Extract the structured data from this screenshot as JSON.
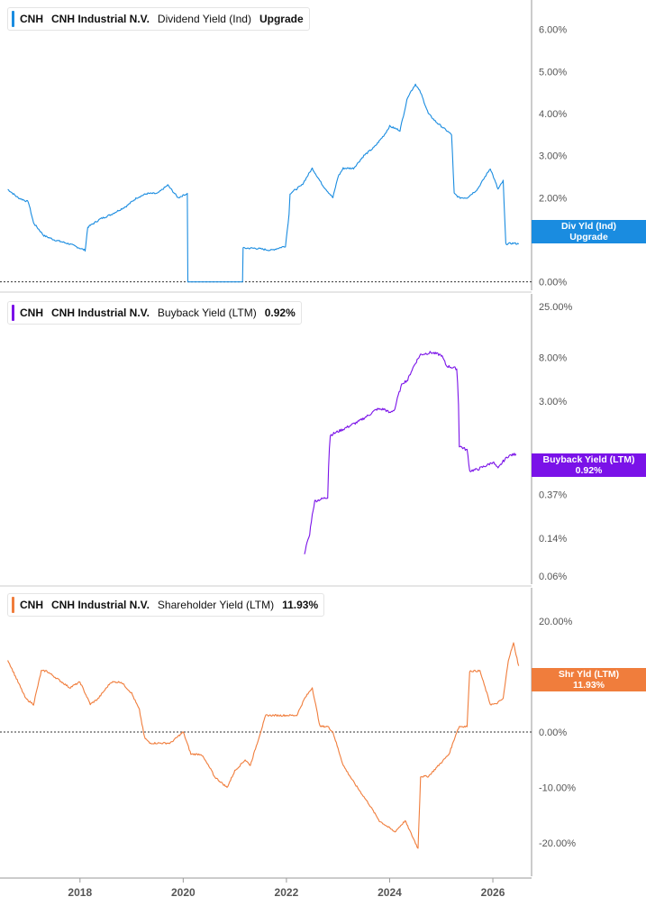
{
  "panels": [
    {
      "ticker": "CNH",
      "company": "CNH Industrial N.V.",
      "metric": "Dividend Yield (Ind)",
      "value": "Upgrade",
      "flag_line1": "Div Yld (Ind)",
      "flag_line2": "Upgrade",
      "color": "#1a8ce0"
    },
    {
      "ticker": "CNH",
      "company": "CNH Industrial N.V.",
      "metric": "Buyback Yield (LTM)",
      "value": "0.92%",
      "flag_line1": "Buyback Yield (LTM)",
      "flag_line2": "0.92%",
      "color": "#7a12e8"
    },
    {
      "ticker": "CNH",
      "company": "CNH Industrial N.V.",
      "metric": "Shareholder Yield (LTM)",
      "value": "11.93%",
      "flag_line1": "Shr Yld (LTM)",
      "flag_line2": "11.93%",
      "color": "#f07d3c"
    }
  ],
  "chart_data": [
    {
      "type": "line",
      "title": "CNH  CNH Industrial N.V.  Dividend Yield (Ind)",
      "y_ticks": [
        "6.00%",
        "5.00%",
        "4.00%",
        "3.00%",
        "2.00%",
        "1.00%",
        "0.00%"
      ],
      "y_tick_values": [
        6,
        5,
        4,
        3,
        2,
        1,
        0
      ],
      "ylim": [
        -0.2,
        6.7
      ],
      "zero_line": true,
      "x": [
        2016.6,
        2016.8,
        2017.0,
        2017.1,
        2017.3,
        2017.5,
        2017.8,
        2018.0,
        2018.1,
        2018.15,
        2018.4,
        2018.6,
        2018.9,
        2019.1,
        2019.3,
        2019.5,
        2019.7,
        2019.9,
        2020.08,
        2020.09,
        2020.6,
        2021.15,
        2021.16,
        2021.4,
        2021.7,
        2021.98,
        2022.05,
        2022.07,
        2022.3,
        2022.5,
        2022.7,
        2022.9,
        2023.0,
        2023.1,
        2023.3,
        2023.5,
        2023.7,
        2023.9,
        2024.0,
        2024.2,
        2024.35,
        2024.5,
        2024.6,
        2024.75,
        2024.9,
        2025.1,
        2025.2,
        2025.25,
        2025.35,
        2025.5,
        2025.7,
        2025.85,
        2025.95,
        2026.1,
        2026.2,
        2026.25,
        2026.4,
        2026.5
      ],
      "y": [
        2.2,
        2.0,
        1.9,
        1.4,
        1.1,
        1.0,
        0.9,
        0.8,
        0.75,
        1.3,
        1.5,
        1.6,
        1.8,
        2.0,
        2.1,
        2.1,
        2.3,
        2.0,
        2.1,
        0.0,
        0.0,
        0.0,
        0.8,
        0.8,
        0.75,
        0.85,
        1.6,
        2.1,
        2.3,
        2.7,
        2.3,
        2.0,
        2.5,
        2.7,
        2.7,
        3.0,
        3.2,
        3.5,
        3.7,
        3.6,
        4.4,
        4.7,
        4.5,
        4.0,
        3.8,
        3.6,
        3.5,
        2.1,
        2.0,
        2.0,
        2.2,
        2.5,
        2.7,
        2.2,
        2.4,
        0.9,
        0.92,
        0.9
      ],
      "series": [
        {
          "name": "Div Yld (Ind)"
        }
      ]
    },
    {
      "type": "line",
      "title": "CNH  CNH Industrial N.V.  Buyback Yield (LTM)",
      "y_scale": "log",
      "y_ticks": [
        "25.00%",
        "8.00%",
        "3.00%",
        "0.37%",
        "0.14%",
        "0.06%"
      ],
      "y_tick_values": [
        25,
        8,
        3,
        0.37,
        0.14,
        0.06
      ],
      "ylim": [
        0.05,
        33
      ],
      "x": [
        2022.35,
        2022.45,
        2022.55,
        2022.8,
        2022.85,
        2023.1,
        2023.2,
        2023.4,
        2023.6,
        2023.75,
        2023.9,
        2024.0,
        2024.1,
        2024.25,
        2024.35,
        2024.6,
        2024.8,
        2025.0,
        2025.1,
        2025.3,
        2025.35,
        2025.5,
        2025.55,
        2025.7,
        2025.9,
        2026.0,
        2026.1,
        2026.2,
        2026.3,
        2026.45
      ],
      "y": [
        0.1,
        0.15,
        0.32,
        0.35,
        1.4,
        1.6,
        1.7,
        1.9,
        2.2,
        2.5,
        2.5,
        2.3,
        2.5,
        4.5,
        4.8,
        8.5,
        8.9,
        8.4,
        6.6,
        6.2,
        1.1,
        1.0,
        0.63,
        0.65,
        0.72,
        0.77,
        0.66,
        0.78,
        0.88,
        0.92
      ],
      "series": [
        {
          "name": "Buyback Yield (LTM)"
        }
      ]
    },
    {
      "type": "line",
      "title": "CNH  CNH Industrial N.V.  Shareholder Yield (LTM)",
      "y_ticks": [
        "20.00%",
        "10.00%",
        "0.00%",
        "-10.00%",
        "-20.00%"
      ],
      "y_tick_values": [
        20,
        10,
        0,
        -10,
        -20
      ],
      "ylim": [
        -26,
        26
      ],
      "zero_line": true,
      "x": [
        2016.6,
        2016.75,
        2016.95,
        2017.1,
        2017.25,
        2017.35,
        2017.65,
        2017.8,
        2018.0,
        2018.2,
        2018.35,
        2018.6,
        2018.8,
        2019.0,
        2019.15,
        2019.25,
        2019.35,
        2019.55,
        2019.75,
        2020.0,
        2020.15,
        2020.35,
        2020.55,
        2020.6,
        2020.85,
        2021.0,
        2021.2,
        2021.3,
        2021.6,
        2021.85,
        2021.95,
        2022.2,
        2022.35,
        2022.5,
        2022.65,
        2022.8,
        2022.9,
        2023.1,
        2023.3,
        2023.45,
        2023.6,
        2023.8,
        2023.95,
        2024.1,
        2024.3,
        2024.45,
        2024.55,
        2024.6,
        2024.75,
        2024.95,
        2025.15,
        2025.3,
        2025.35,
        2025.5,
        2025.55,
        2025.75,
        2025.95,
        2026.05,
        2026.2,
        2026.3,
        2026.4,
        2026.5
      ],
      "y": [
        13,
        10,
        6,
        5,
        11,
        11,
        9,
        8,
        9,
        5,
        6,
        9,
        9,
        7,
        4,
        -1,
        -2,
        -2,
        -2,
        0,
        -4,
        -4,
        -7,
        -8,
        -10,
        -7,
        -5,
        -6,
        3,
        3,
        3,
        3,
        6,
        8,
        1,
        1,
        0,
        -6,
        -9,
        -11,
        -13,
        -16,
        -17,
        -18,
        -16,
        -19,
        -21,
        -8,
        -8,
        -6,
        -4,
        0,
        1,
        1,
        11,
        11,
        5,
        5,
        6,
        13,
        16,
        11.93
      ],
      "series": [
        {
          "name": "Shr Yld (LTM)"
        }
      ]
    }
  ],
  "x_axis": {
    "ticks": [
      "2018",
      "2020",
      "2022",
      "2024",
      "2026"
    ],
    "tick_values": [
      2018,
      2020,
      2022,
      2024,
      2026
    ],
    "xlim": [
      2016.45,
      2026.75
    ]
  },
  "colors": {
    "axis": "#9a9a9a",
    "tick_text": "#555555",
    "zero_line": "#333333",
    "divider": "#cccccc"
  }
}
